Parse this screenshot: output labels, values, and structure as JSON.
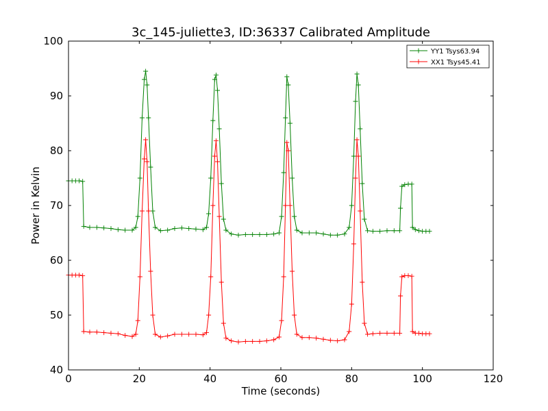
{
  "chart_data": {
    "type": "line",
    "title": "3c_145-juliette3, ID:36337 Calibrated Amplitude",
    "xlabel": "Time (seconds)",
    "ylabel": "Power in Kelvin",
    "xlim": [
      0,
      120
    ],
    "ylim": [
      40,
      100
    ],
    "xticks": [
      "0",
      "20",
      "40",
      "60",
      "80",
      "100",
      "120"
    ],
    "yticks": [
      "40",
      "50",
      "60",
      "70",
      "80",
      "90",
      "100"
    ],
    "grid": false,
    "legend_position": "top-right",
    "series": [
      {
        "name": "YY1 Tsys63.94",
        "color": "#008000",
        "marker": "+",
        "points": [
          [
            0,
            74.5
          ],
          [
            1,
            74.5
          ],
          [
            2,
            74.5
          ],
          [
            3,
            74.5
          ],
          [
            4,
            74.4
          ],
          [
            4.3,
            66.2
          ],
          [
            6,
            66.0
          ],
          [
            8,
            66.0
          ],
          [
            10,
            65.9
          ],
          [
            12,
            65.8
          ],
          [
            14,
            65.6
          ],
          [
            16,
            65.5
          ],
          [
            18,
            65.5
          ],
          [
            19,
            66.0
          ],
          [
            19.6,
            68.0
          ],
          [
            20.2,
            75.0
          ],
          [
            20.8,
            86.0
          ],
          [
            21.4,
            93.0
          ],
          [
            21.8,
            94.5
          ],
          [
            22.2,
            92.0
          ],
          [
            22.6,
            86.0
          ],
          [
            23.2,
            77.0
          ],
          [
            23.8,
            69.0
          ],
          [
            24.5,
            66.0
          ],
          [
            26,
            65.4
          ],
          [
            28,
            65.5
          ],
          [
            30,
            65.8
          ],
          [
            32,
            65.9
          ],
          [
            34,
            65.8
          ],
          [
            36,
            65.7
          ],
          [
            38,
            65.6
          ],
          [
            39,
            66.0
          ],
          [
            39.6,
            68.5
          ],
          [
            40.2,
            75.0
          ],
          [
            40.8,
            85.5
          ],
          [
            41.3,
            93.0
          ],
          [
            41.7,
            93.8
          ],
          [
            42.1,
            91.0
          ],
          [
            42.6,
            84.0
          ],
          [
            43.2,
            74.0
          ],
          [
            43.8,
            67.5
          ],
          [
            44.5,
            65.5
          ],
          [
            46,
            64.8
          ],
          [
            48,
            64.6
          ],
          [
            50,
            64.7
          ],
          [
            52,
            64.7
          ],
          [
            54,
            64.7
          ],
          [
            56,
            64.7
          ],
          [
            58,
            64.8
          ],
          [
            59.5,
            65.0
          ],
          [
            60.2,
            68.0
          ],
          [
            60.8,
            76.0
          ],
          [
            61.3,
            86.0
          ],
          [
            61.7,
            93.5
          ],
          [
            62.1,
            92.0
          ],
          [
            62.6,
            85.0
          ],
          [
            63.2,
            75.0
          ],
          [
            63.8,
            68.0
          ],
          [
            64.5,
            65.5
          ],
          [
            66,
            65.0
          ],
          [
            68,
            65.0
          ],
          [
            70,
            65.0
          ],
          [
            72,
            64.8
          ],
          [
            74,
            64.6
          ],
          [
            76,
            64.6
          ],
          [
            78,
            64.8
          ],
          [
            79.3,
            66.0
          ],
          [
            80.0,
            70.0
          ],
          [
            80.6,
            79.0
          ],
          [
            81.1,
            89.0
          ],
          [
            81.5,
            94.0
          ],
          [
            81.9,
            92.0
          ],
          [
            82.4,
            84.0
          ],
          [
            83.0,
            74.0
          ],
          [
            83.6,
            67.5
          ],
          [
            84.5,
            65.4
          ],
          [
            86,
            65.3
          ],
          [
            88,
            65.3
          ],
          [
            90,
            65.4
          ],
          [
            92,
            65.4
          ],
          [
            93.6,
            65.4
          ],
          [
            93.8,
            69.5
          ],
          [
            94.2,
            73.5
          ],
          [
            95,
            73.8
          ],
          [
            96,
            73.9
          ],
          [
            97,
            73.9
          ],
          [
            97.2,
            66.0
          ],
          [
            98,
            65.6
          ],
          [
            99,
            65.4
          ],
          [
            100,
            65.3
          ],
          [
            101,
            65.3
          ],
          [
            102,
            65.3
          ]
        ]
      },
      {
        "name": "XX1 Tsys45.41",
        "color": "#ff0000",
        "marker": "+",
        "points": [
          [
            0,
            57.3
          ],
          [
            1,
            57.3
          ],
          [
            2,
            57.3
          ],
          [
            3,
            57.3
          ],
          [
            4,
            57.2
          ],
          [
            4.3,
            47.0
          ],
          [
            6,
            46.9
          ],
          [
            8,
            46.9
          ],
          [
            10,
            46.8
          ],
          [
            12,
            46.7
          ],
          [
            14,
            46.6
          ],
          [
            16,
            46.3
          ],
          [
            18,
            46.1
          ],
          [
            19,
            46.5
          ],
          [
            19.6,
            49.0
          ],
          [
            20.2,
            57.0
          ],
          [
            20.8,
            69.0
          ],
          [
            21.4,
            78.5
          ],
          [
            21.8,
            82.0
          ],
          [
            22.2,
            78.0
          ],
          [
            22.6,
            69.0
          ],
          [
            23.2,
            58.0
          ],
          [
            23.8,
            50.0
          ],
          [
            24.5,
            46.5
          ],
          [
            26,
            46.0
          ],
          [
            28,
            46.2
          ],
          [
            30,
            46.5
          ],
          [
            32,
            46.5
          ],
          [
            34,
            46.5
          ],
          [
            36,
            46.5
          ],
          [
            38,
            46.4
          ],
          [
            39,
            46.8
          ],
          [
            39.6,
            50.0
          ],
          [
            40.2,
            57.0
          ],
          [
            40.8,
            70.0
          ],
          [
            41.3,
            79.0
          ],
          [
            41.7,
            81.8
          ],
          [
            42.1,
            78.0
          ],
          [
            42.6,
            68.0
          ],
          [
            43.2,
            56.0
          ],
          [
            43.8,
            48.5
          ],
          [
            44.5,
            45.8
          ],
          [
            46,
            45.3
          ],
          [
            48,
            45.1
          ],
          [
            50,
            45.2
          ],
          [
            52,
            45.2
          ],
          [
            54,
            45.2
          ],
          [
            56,
            45.3
          ],
          [
            58,
            45.5
          ],
          [
            59.5,
            46.0
          ],
          [
            60.2,
            49.0
          ],
          [
            60.8,
            57.0
          ],
          [
            61.3,
            70.0
          ],
          [
            61.7,
            81.5
          ],
          [
            62.1,
            80.0
          ],
          [
            62.6,
            70.0
          ],
          [
            63.2,
            58.0
          ],
          [
            63.8,
            50.0
          ],
          [
            64.5,
            46.5
          ],
          [
            66,
            45.9
          ],
          [
            68,
            45.9
          ],
          [
            70,
            45.8
          ],
          [
            72,
            45.6
          ],
          [
            74,
            45.4
          ],
          [
            76,
            45.3
          ],
          [
            78,
            45.5
          ],
          [
            79.3,
            47.0
          ],
          [
            80.0,
            52.0
          ],
          [
            80.6,
            63.0
          ],
          [
            81.1,
            75.0
          ],
          [
            81.5,
            82.0
          ],
          [
            81.9,
            79.0
          ],
          [
            82.4,
            69.0
          ],
          [
            83.0,
            56.0
          ],
          [
            83.6,
            48.5
          ],
          [
            84.5,
            46.5
          ],
          [
            86,
            46.6
          ],
          [
            88,
            46.7
          ],
          [
            90,
            46.7
          ],
          [
            92,
            46.7
          ],
          [
            93.6,
            46.7
          ],
          [
            93.8,
            53.5
          ],
          [
            94.2,
            57.0
          ],
          [
            95,
            57.2
          ],
          [
            96,
            57.2
          ],
          [
            97,
            57.1
          ],
          [
            97.2,
            47.0
          ],
          [
            98,
            46.7
          ],
          [
            99,
            46.7
          ],
          [
            100,
            46.6
          ],
          [
            101,
            46.6
          ],
          [
            102,
            46.6
          ]
        ]
      }
    ]
  }
}
